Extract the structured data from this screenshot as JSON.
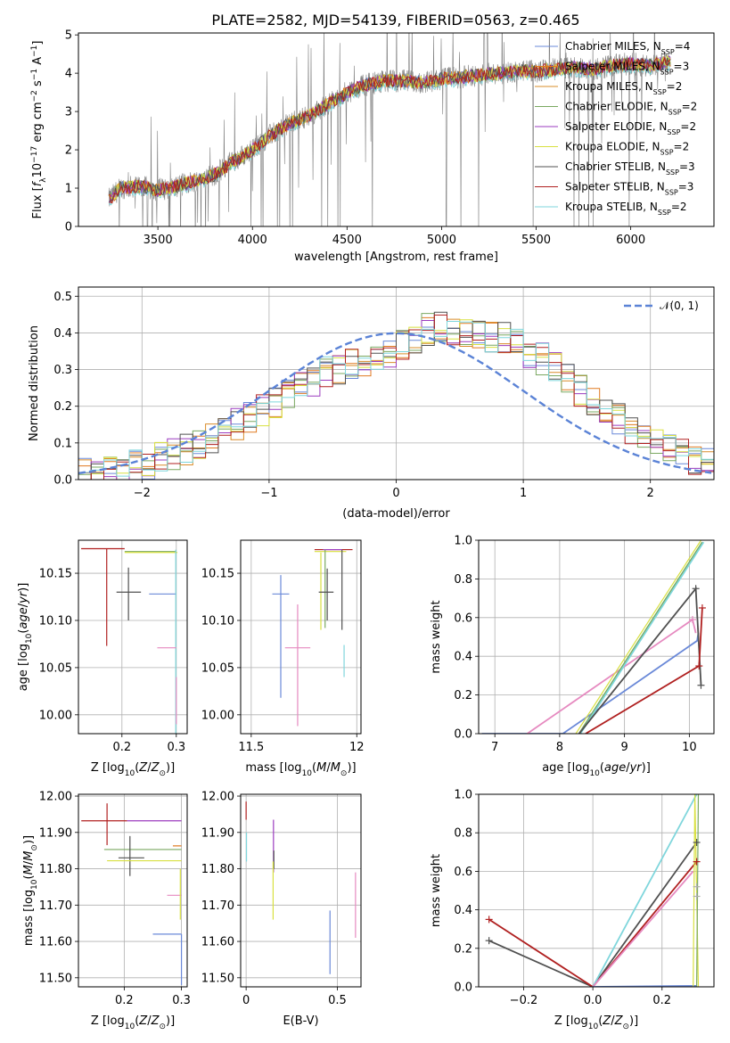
{
  "colors": {
    "Chabrier MILES": "#6a89d8",
    "Salpeter MILES": "#e07a20",
    "Kroupa MILES": "#d98c2a",
    "Chabrier ELODIE": "#7aa860",
    "Salpeter ELODIE": "#9b3bbf",
    "Kroupa ELODIE": "#d8e040",
    "Chabrier STELIB": "#505050",
    "Salpeter STELIB": "#b02020",
    "Kroupa STELIB": "#7fd6dc",
    "pink": "#e68ac0",
    "normal": "#5b83d6",
    "grid": "#b0b0b0",
    "data": "#808080"
  },
  "chart_data": [
    {
      "type": "line",
      "title": "PLATE=2582, MJD=54139, FIBERID=0563, z=0.465",
      "xlabel": "wavelength [Angstrom, rest frame]",
      "ylabel": "Flux [f_λ 10^-17 erg cm^-2 s^-1 A^-1]",
      "xlim": [
        3080,
        6440
      ],
      "ylim": [
        0,
        5.05
      ],
      "xticks": [
        3500,
        4000,
        4500,
        5000,
        5500,
        6000
      ],
      "yticks": [
        0,
        1,
        2,
        3,
        4,
        5
      ],
      "legend_position": "right",
      "legend": [
        {
          "label": "Chabrier MILES, N",
          "sub": "SSP",
          "tail": "=4"
        },
        {
          "label": "Salpeter MILES, N",
          "sub": "SSP",
          "tail": "=3"
        },
        {
          "label": "Kroupa MILES, N",
          "sub": "SSP",
          "tail": "=2"
        },
        {
          "label": "Chabrier ELODIE, N",
          "sub": "SSP",
          "tail": "=2"
        },
        {
          "label": "Salpeter ELODIE, N",
          "sub": "SSP",
          "tail": "=2"
        },
        {
          "label": "Kroupa ELODIE, N",
          "sub": "SSP",
          "tail": "=2"
        },
        {
          "label": "Chabrier STELIB, N",
          "sub": "SSP",
          "tail": "=3"
        },
        {
          "label": "Salpeter STELIB, N",
          "sub": "SSP",
          "tail": "=3"
        },
        {
          "label": "Kroupa STELIB, N",
          "sub": "SSP",
          "tail": "=2"
        }
      ],
      "model_continuum": {
        "x": [
          3240,
          3300,
          3400,
          3500,
          3600,
          3700,
          3800,
          3900,
          4000,
          4100,
          4200,
          4300,
          4400,
          4500,
          4600,
          4700,
          4800,
          4900,
          5000,
          5100,
          5200,
          5300,
          5400,
          5500,
          5600,
          5700,
          5800,
          5900,
          6000,
          6100,
          6200
        ],
        "y": [
          0.7,
          1.0,
          1.05,
          0.95,
          1.05,
          1.2,
          1.35,
          1.7,
          2.0,
          2.4,
          2.7,
          2.9,
          3.2,
          3.5,
          3.7,
          3.8,
          3.8,
          3.75,
          3.85,
          3.9,
          3.95,
          4.0,
          4.05,
          4.05,
          4.1,
          4.15,
          4.1,
          4.2,
          4.25,
          4.2,
          4.3
        ]
      }
    },
    {
      "type": "line",
      "xlabel": "(data-model)/error",
      "ylabel": "Normed distribution",
      "xlim": [
        -2.5,
        2.5
      ],
      "ylim": [
        0,
        0.525
      ],
      "xticks": [
        -2,
        -1,
        0,
        1,
        2
      ],
      "yticks": [
        0.0,
        0.1,
        0.2,
        0.3,
        0.4,
        0.5
      ],
      "legend": "𝒩(0, 1)",
      "legend_position": "top-right",
      "histogram_envelope": {
        "x": [
          -2.5,
          -2.0,
          -1.5,
          -1.0,
          -0.5,
          0.0,
          0.3,
          0.6,
          0.9,
          1.2,
          1.5,
          2.0,
          2.5
        ],
        "y": [
          0.01,
          0.04,
          0.1,
          0.2,
          0.3,
          0.35,
          0.42,
          0.4,
          0.38,
          0.32,
          0.23,
          0.1,
          0.04
        ]
      }
    },
    {
      "type": "scatter",
      "xlabel": "Z [log10(Z/Z⊙)]",
      "ylabel": "age [log10(age/yr)]",
      "xlim": [
        0.12,
        0.32
      ],
      "ylim": [
        9.98,
        10.185
      ],
      "xticks": [
        0.2,
        0.3
      ],
      "yticks": [
        10.0,
        10.05,
        10.1,
        10.15
      ]
    },
    {
      "type": "scatter",
      "xlabel": "mass [log10(M/M⊙)]",
      "xlim": [
        11.45,
        12.02
      ],
      "ylim": [
        9.98,
        10.185
      ],
      "xticks": [
        11.5,
        12.0
      ],
      "yticks": [
        10.0,
        10.05,
        10.1,
        10.15
      ]
    },
    {
      "type": "line",
      "xlabel": "age  [log10(age/yr)]",
      "ylabel": "mass weight",
      "xlim": [
        6.75,
        10.38
      ],
      "ylim": [
        0,
        1.0
      ],
      "xticks": [
        7,
        8,
        9,
        10
      ],
      "yticks": [
        0.0,
        0.2,
        0.4,
        0.6,
        0.8,
        1.0
      ]
    },
    {
      "type": "scatter",
      "xlabel": "Z [log10(Z/Z⊙)]",
      "ylabel": "mass [log10(M/M⊙)]",
      "xlim": [
        0.12,
        0.31
      ],
      "ylim": [
        11.475,
        12.005
      ],
      "xticks": [
        0.2,
        0.3
      ],
      "yticks": [
        11.5,
        11.6,
        11.7,
        11.8,
        11.9,
        12.0
      ]
    },
    {
      "type": "scatter",
      "xlabel": "E(B-V)",
      "xlim": [
        -0.03,
        0.63
      ],
      "ylim": [
        11.475,
        12.005
      ],
      "xticks": [
        0.0,
        0.5
      ],
      "yticks": [
        11.5,
        11.6,
        11.7,
        11.8,
        11.9,
        12.0
      ]
    },
    {
      "type": "line",
      "xlabel": "Z [log10(Z/Z⊙)]",
      "ylabel": "mass weight",
      "xlim": [
        -0.33,
        0.35
      ],
      "ylim": [
        0,
        1.0
      ],
      "xticks": [
        -0.2,
        0.0,
        0.2
      ],
      "yticks": [
        0.0,
        0.2,
        0.4,
        0.6,
        0.8,
        1.0
      ]
    }
  ]
}
